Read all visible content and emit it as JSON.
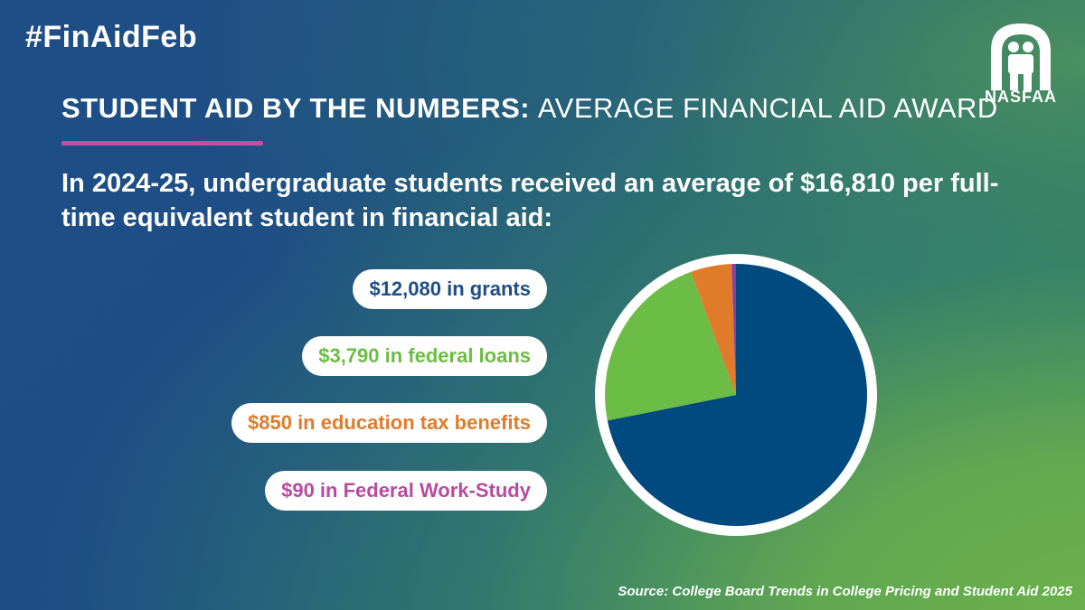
{
  "hashtag": "#FinAidFeb",
  "logo": {
    "icon": "nasfaa-arch-logo",
    "text": "NASFAA"
  },
  "headline": {
    "bold": "STUDENT AID BY THE NUMBERS:",
    "light": "AVERAGE FINANCIAL AID AWARD"
  },
  "accent_color": "#c04fa6",
  "intro": "In 2024-25, undergraduate students received an average of $16,810 per full-time equivalent student in financial aid:",
  "labels": [
    {
      "text": "$12,080 in grants",
      "color": "#1d4e86"
    },
    {
      "text": "$3,790 in federal loans",
      "color": "#6cbd45"
    },
    {
      "text": "$850 in education tax benefits",
      "color": "#e07b2a"
    },
    {
      "text": "$90 in Federal Work-Study",
      "color": "#b84aa0"
    }
  ],
  "chart_data": {
    "type": "pie",
    "title": "",
    "categories": [
      "grants",
      "federal loans",
      "education tax benefits",
      "Federal Work-Study"
    ],
    "values": [
      12080,
      3790,
      850,
      90
    ],
    "colors": [
      "#004a7f",
      "#6cbd45",
      "#e07b2a",
      "#8a3fa0"
    ],
    "legend": "left"
  },
  "source": "Source: College Board Trends in College Pricing and Student Aid 2025"
}
